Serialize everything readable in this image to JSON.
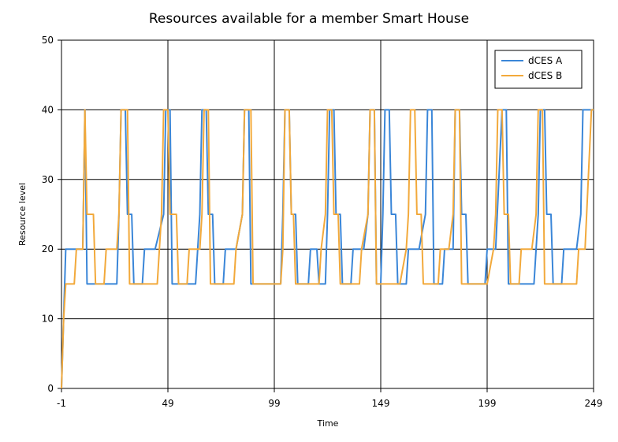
{
  "chart_data": {
    "type": "line",
    "title": "Resources available for a member Smart House",
    "xlabel": "Time",
    "ylabel": "Resource level",
    "xlim": [
      -1,
      249
    ],
    "ylim": [
      0,
      50
    ],
    "xticks": [
      -1,
      49,
      99,
      149,
      199,
      249
    ],
    "yticks": [
      0,
      10,
      20,
      30,
      40,
      50
    ],
    "grid": true,
    "legend_position": "top-right",
    "series": [
      {
        "name": "dCES A",
        "color": "#3a86d8",
        "points": [
          [
            -1,
            0
          ],
          [
            0,
            10
          ],
          [
            1,
            20
          ],
          [
            5,
            20
          ],
          [
            6,
            20
          ],
          [
            9,
            20
          ],
          [
            10,
            40
          ],
          [
            11,
            15
          ],
          [
            25,
            15
          ],
          [
            26,
            25
          ],
          [
            27,
            40
          ],
          [
            29,
            40
          ],
          [
            30,
            25
          ],
          [
            32,
            25
          ],
          [
            33,
            15
          ],
          [
            37,
            15
          ],
          [
            38,
            20
          ],
          [
            43,
            20
          ],
          [
            47,
            25
          ],
          [
            48,
            40
          ],
          [
            50,
            40
          ],
          [
            51,
            15
          ],
          [
            56,
            15
          ],
          [
            57,
            15
          ],
          [
            62,
            15
          ],
          [
            64,
            25
          ],
          [
            65,
            40
          ],
          [
            67,
            40
          ],
          [
            68,
            25
          ],
          [
            70,
            25
          ],
          [
            71,
            15
          ],
          [
            75,
            15
          ],
          [
            76,
            20
          ],
          [
            81,
            20
          ],
          [
            84,
            25
          ],
          [
            85,
            40
          ],
          [
            87,
            40
          ],
          [
            88,
            15
          ],
          [
            96,
            15
          ],
          [
            97,
            15
          ],
          [
            102,
            15
          ],
          [
            103,
            25
          ],
          [
            104,
            40
          ],
          [
            106,
            40
          ],
          [
            107,
            25
          ],
          [
            109,
            25
          ],
          [
            110,
            15
          ],
          [
            115,
            15
          ],
          [
            116,
            20
          ],
          [
            119,
            20
          ],
          [
            120,
            15
          ],
          [
            123,
            15
          ],
          [
            124,
            25
          ],
          [
            125,
            40
          ],
          [
            127,
            40
          ],
          [
            128,
            25
          ],
          [
            130,
            25
          ],
          [
            131,
            15
          ],
          [
            135,
            15
          ],
          [
            136,
            20
          ],
          [
            141,
            20
          ],
          [
            143,
            25
          ],
          [
            144,
            40
          ],
          [
            146,
            40
          ],
          [
            147,
            15
          ],
          [
            149,
            15
          ],
          [
            150,
            25
          ],
          [
            151,
            40
          ],
          [
            153,
            40
          ],
          [
            154,
            25
          ],
          [
            156,
            25
          ],
          [
            157,
            15
          ],
          [
            161,
            15
          ],
          [
            162,
            20
          ],
          [
            167,
            20
          ],
          [
            170,
            25
          ],
          [
            171,
            40
          ],
          [
            173,
            40
          ],
          [
            174,
            15
          ],
          [
            178,
            15
          ],
          [
            179,
            20
          ],
          [
            183,
            20
          ],
          [
            184,
            40
          ],
          [
            186,
            40
          ],
          [
            187,
            25
          ],
          [
            189,
            25
          ],
          [
            190,
            15
          ],
          [
            197,
            15
          ],
          [
            198,
            15
          ],
          [
            199,
            20
          ],
          [
            203,
            20
          ],
          [
            206,
            40
          ],
          [
            208,
            40
          ],
          [
            209,
            15
          ],
          [
            221,
            15
          ],
          [
            223,
            25
          ],
          [
            224,
            40
          ],
          [
            226,
            40
          ],
          [
            227,
            25
          ],
          [
            229,
            25
          ],
          [
            230,
            15
          ],
          [
            234,
            15
          ],
          [
            235,
            20
          ],
          [
            241,
            20
          ],
          [
            243,
            25
          ],
          [
            244,
            40
          ],
          [
            249,
            40
          ]
        ]
      },
      {
        "name": "dCES B",
        "color": "#f2a93b",
        "points": [
          [
            -1,
            0
          ],
          [
            0,
            10
          ],
          [
            1,
            15
          ],
          [
            5,
            15
          ],
          [
            6,
            20
          ],
          [
            9,
            20
          ],
          [
            10,
            40
          ],
          [
            11,
            25
          ],
          [
            14,
            25
          ],
          [
            15,
            15
          ],
          [
            19,
            15
          ],
          [
            20,
            20
          ],
          [
            25,
            20
          ],
          [
            26,
            25
          ],
          [
            27,
            40
          ],
          [
            30,
            40
          ],
          [
            31,
            15
          ],
          [
            44,
            15
          ],
          [
            45,
            20
          ],
          [
            46,
            25
          ],
          [
            47,
            40
          ],
          [
            49,
            40
          ],
          [
            50,
            25
          ],
          [
            53,
            25
          ],
          [
            54,
            15
          ],
          [
            58,
            15
          ],
          [
            59,
            20
          ],
          [
            64,
            20
          ],
          [
            65,
            25
          ],
          [
            66,
            40
          ],
          [
            68,
            40
          ],
          [
            69,
            15
          ],
          [
            79,
            15
          ],
          [
            80,
            15
          ],
          [
            81,
            20
          ],
          [
            84,
            25
          ],
          [
            85,
            40
          ],
          [
            88,
            40
          ],
          [
            89,
            15
          ],
          [
            100,
            15
          ],
          [
            101,
            15
          ],
          [
            102,
            15
          ],
          [
            103,
            20
          ],
          [
            104,
            40
          ],
          [
            106,
            40
          ],
          [
            107,
            25
          ],
          [
            108,
            25
          ],
          [
            109,
            15
          ],
          [
            119,
            15
          ],
          [
            120,
            15
          ],
          [
            121,
            20
          ],
          [
            123,
            25
          ],
          [
            124,
            40
          ],
          [
            126,
            40
          ],
          [
            127,
            25
          ],
          [
            129,
            25
          ],
          [
            130,
            15
          ],
          [
            135,
            15
          ],
          [
            139,
            15
          ],
          [
            140,
            20
          ],
          [
            143,
            25
          ],
          [
            144,
            40
          ],
          [
            146,
            40
          ],
          [
            147,
            15
          ],
          [
            158,
            15
          ],
          [
            161,
            20
          ],
          [
            162,
            25
          ],
          [
            163,
            40
          ],
          [
            165,
            40
          ],
          [
            166,
            25
          ],
          [
            168,
            25
          ],
          [
            169,
            15
          ],
          [
            176,
            15
          ],
          [
            177,
            20
          ],
          [
            181,
            20
          ],
          [
            183,
            25
          ],
          [
            184,
            40
          ],
          [
            186,
            40
          ],
          [
            187,
            15
          ],
          [
            197,
            15
          ],
          [
            198,
            15
          ],
          [
            199,
            15
          ],
          [
            202,
            20
          ],
          [
            203,
            25
          ],
          [
            204,
            40
          ],
          [
            206,
            40
          ],
          [
            207,
            25
          ],
          [
            209,
            25
          ],
          [
            210,
            15
          ],
          [
            214,
            15
          ],
          [
            215,
            20
          ],
          [
            220,
            20
          ],
          [
            222,
            25
          ],
          [
            223,
            40
          ],
          [
            225,
            40
          ],
          [
            226,
            15
          ],
          [
            235,
            15
          ],
          [
            239,
            15
          ],
          [
            241,
            15
          ],
          [
            242,
            20
          ],
          [
            245,
            20
          ],
          [
            248,
            40
          ],
          [
            249,
            40
          ]
        ]
      }
    ]
  }
}
